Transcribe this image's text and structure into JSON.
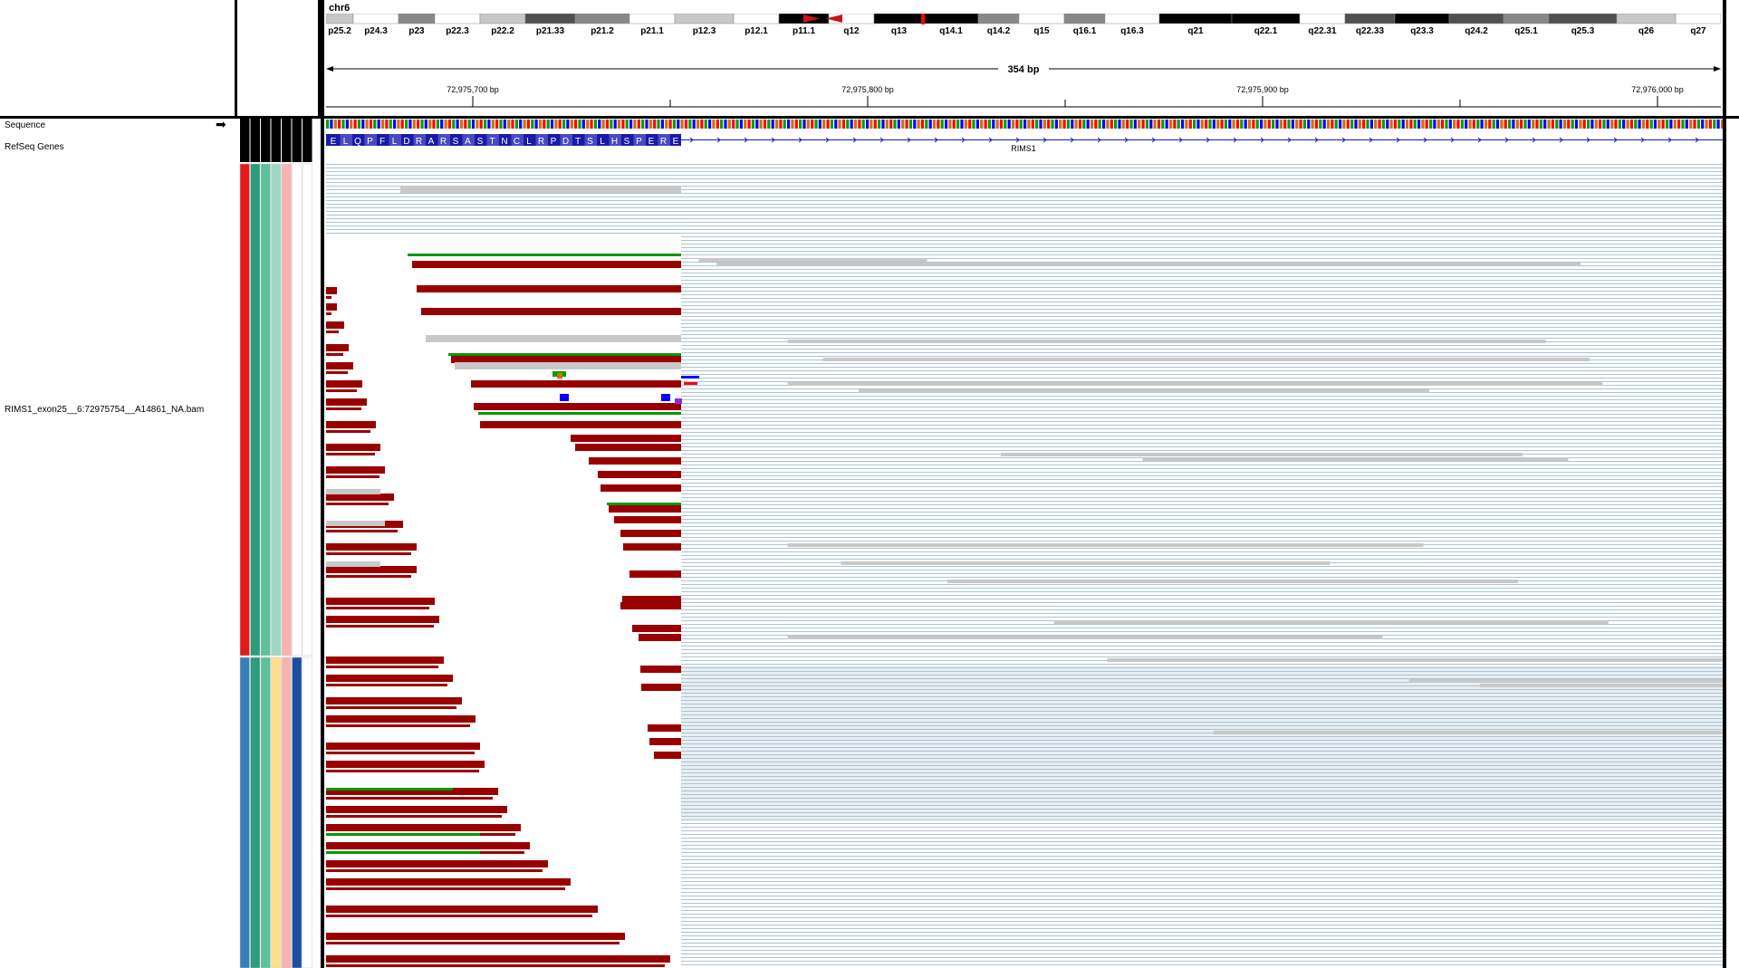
{
  "chromosome": "chr6",
  "ideogram": {
    "bands": [
      "p25.2",
      "p24.3",
      "p23",
      "p22.3",
      "p22.2",
      "p21.33",
      "p21.2",
      "p21.1",
      "p12.3",
      "p12.1",
      "p11.1",
      "q12",
      "q13",
      "q14.1",
      "q14.2",
      "q15",
      "q16.1",
      "q16.3",
      "q21",
      "q22.1",
      "q22.31",
      "q22.33",
      "q23.3",
      "q24.2",
      "q25.1",
      "q25.3",
      "q26",
      "q27"
    ],
    "highlight_color": "#ff0000"
  },
  "ruler": {
    "span_label": "354 bp",
    "ticks": [
      "72,975,700 bp",
      "72,975,800 bp",
      "72,975,900 bp",
      "72,976,000 bp"
    ]
  },
  "tracks": {
    "sequence_label": "Sequence",
    "refseq_label": "RefSeq Genes",
    "bam_label": "RIMS1_exon25__6:72975754__A14861_NA.bam"
  },
  "gene": {
    "name": "RIMS1",
    "amino_acids": [
      "E",
      "L",
      "Q",
      "P",
      "F",
      "L",
      "D",
      "R",
      "A",
      "R",
      "S",
      "A",
      "S",
      "T",
      "N",
      "C",
      "L",
      "R",
      "P",
      "D",
      "T",
      "S",
      "L",
      "H",
      "S",
      "P",
      "E",
      "R",
      "E"
    ],
    "color": "#1a1aa6"
  },
  "colors": {
    "read_red": "#990000",
    "read_green": "#009900",
    "read_gray": "#c8c8c8",
    "coverage_blue": "#aac4d4",
    "attr_group1": [
      "#e31a1c",
      "#2a9d7a",
      "#5fbf9b",
      "#9fd8c5",
      "#f9b2b2",
      "#ffffff",
      "#ffffff"
    ],
    "attr_group2": [
      "#377eb8",
      "#2a9d7a",
      "#5fbf9b",
      "#ffe08a",
      "#f9b2b2",
      "#1a4fa0",
      "#ffffff"
    ]
  }
}
